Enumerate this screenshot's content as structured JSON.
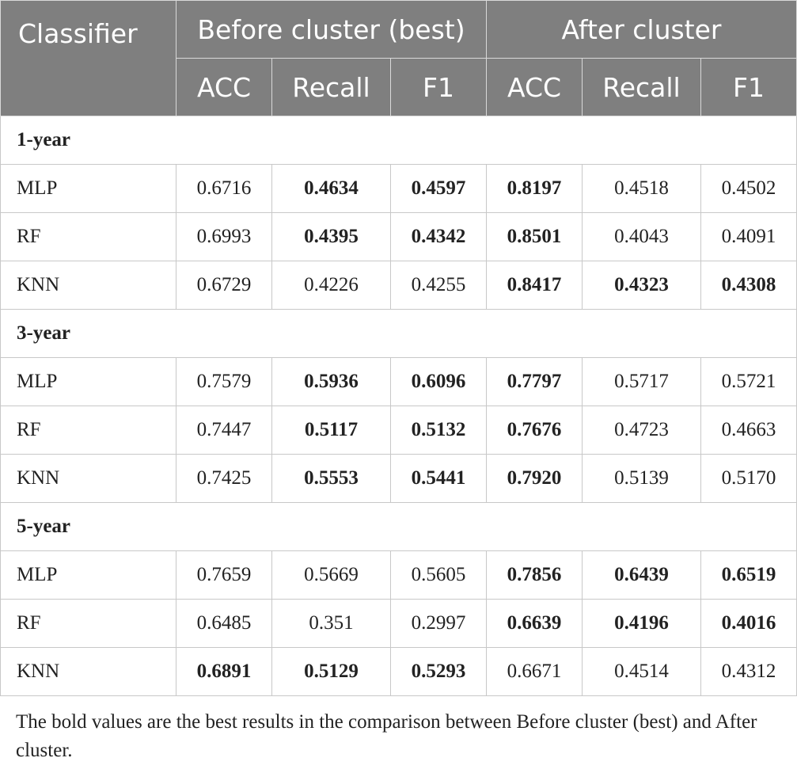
{
  "header": {
    "classifier": "Classifier",
    "before_group": "Before cluster (best)",
    "after_group": "After cluster",
    "metrics": [
      "ACC",
      "Recall",
      "F1",
      "ACC",
      "Recall",
      "F1"
    ]
  },
  "groups": [
    {
      "label": "1-year",
      "rows": [
        {
          "name": "MLP",
          "values": [
            "0.6716",
            "0.4634",
            "0.4597",
            "0.8197",
            "0.4518",
            "0.4502"
          ],
          "bold": [
            false,
            true,
            true,
            true,
            false,
            false
          ]
        },
        {
          "name": "RF",
          "values": [
            "0.6993",
            "0.4395",
            "0.4342",
            "0.8501",
            "0.4043",
            "0.4091"
          ],
          "bold": [
            false,
            true,
            true,
            true,
            false,
            false
          ]
        },
        {
          "name": "KNN",
          "values": [
            "0.6729",
            "0.4226",
            "0.4255",
            "0.8417",
            "0.4323",
            "0.4308"
          ],
          "bold": [
            false,
            false,
            false,
            true,
            true,
            true
          ]
        }
      ]
    },
    {
      "label": "3-year",
      "rows": [
        {
          "name": "MLP",
          "values": [
            "0.7579",
            "0.5936",
            "0.6096",
            "0.7797",
            "0.5717",
            "0.5721"
          ],
          "bold": [
            false,
            true,
            true,
            true,
            false,
            false
          ]
        },
        {
          "name": "RF",
          "values": [
            "0.7447",
            "0.5117",
            "0.5132",
            "0.7676",
            "0.4723",
            "0.4663"
          ],
          "bold": [
            false,
            true,
            true,
            true,
            false,
            false
          ]
        },
        {
          "name": "KNN",
          "values": [
            "0.7425",
            "0.5553",
            "0.5441",
            "0.7920",
            "0.5139",
            "0.5170"
          ],
          "bold": [
            false,
            true,
            true,
            true,
            false,
            false
          ]
        }
      ]
    },
    {
      "label": "5-year",
      "rows": [
        {
          "name": "MLP",
          "values": [
            "0.7659",
            "0.5669",
            "0.5605",
            "0.7856",
            "0.6439",
            "0.6519"
          ],
          "bold": [
            false,
            false,
            false,
            true,
            true,
            true
          ]
        },
        {
          "name": "RF",
          "values": [
            "0.6485",
            "0.351",
            "0.2997",
            "0.6639",
            "0.4196",
            "0.4016"
          ],
          "bold": [
            false,
            false,
            false,
            true,
            true,
            true
          ]
        },
        {
          "name": "KNN",
          "values": [
            "0.6891",
            "0.5129",
            "0.5293",
            "0.6671",
            "0.4514",
            "0.4312"
          ],
          "bold": [
            true,
            true,
            true,
            false,
            false,
            false
          ]
        }
      ]
    }
  ],
  "footnote": "The bold values are the best results in the comparison between Before cluster (best) and After cluster."
}
